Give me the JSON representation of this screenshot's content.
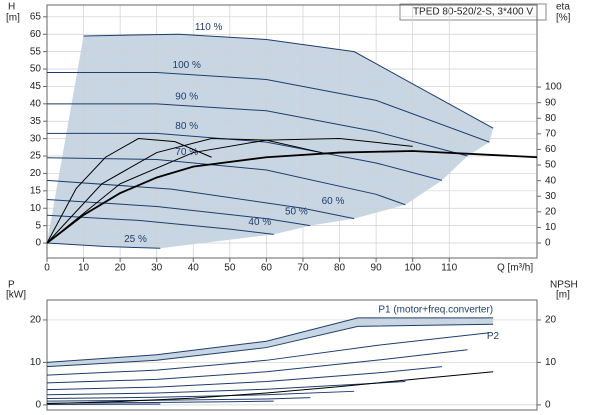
{
  "chart_data": [
    {
      "type": "line",
      "title": "TPED 80-520/2-S, 3*400 V",
      "x_label": "Q [m³/h]",
      "y_label": "H",
      "y_unit": "[m]",
      "y2_label": "eta",
      "y2_unit": "[%]",
      "xlim": [
        0,
        134
      ],
      "ylim": [
        -4.3,
        68.4
      ],
      "y2lim": [
        -9.6,
        152.6
      ],
      "xticks": [
        0,
        10,
        20,
        30,
        40,
        50,
        60,
        70,
        80,
        90,
        100,
        110
      ],
      "yticks": [
        0,
        5,
        10,
        15,
        20,
        25,
        30,
        35,
        40,
        45,
        50,
        55,
        60,
        65
      ],
      "y2ticks": [
        0,
        10,
        20,
        30,
        40,
        50,
        60,
        70,
        80,
        90,
        100
      ],
      "grid": true,
      "shade": "#c8d6e4",
      "series": [
        {
          "name": "110 %",
          "color": "#1f3d6b",
          "x": [
            10,
            36,
            60,
            84,
            122
          ],
          "values": [
            59.5,
            60,
            58.5,
            55,
            33
          ]
        },
        {
          "name": "100 %",
          "color": "#1f3d6b",
          "x": [
            0,
            30,
            60,
            90,
            121
          ],
          "values": [
            49,
            49,
            47,
            41,
            29
          ]
        },
        {
          "name": "90 %",
          "color": "#1f3d6b",
          "x": [
            0,
            30,
            60,
            90,
            115
          ],
          "values": [
            40,
            40,
            38,
            32,
            25
          ]
        },
        {
          "name": "80 %",
          "color": "#1f3d6b",
          "x": [
            0,
            30,
            60,
            90,
            108
          ],
          "values": [
            31.5,
            31.5,
            29,
            23,
            18
          ]
        },
        {
          "name": "70 %",
          "color": "#1f3d6b",
          "x": [
            0,
            30,
            60,
            90,
            98
          ],
          "values": [
            24.5,
            24,
            21,
            14,
            11
          ]
        },
        {
          "name": "60 %",
          "color": "#1f3d6b",
          "x": [
            0,
            34,
            70,
            84
          ],
          "values": [
            18,
            15.5,
            10,
            7
          ]
        },
        {
          "name": "50 %",
          "color": "#1f3d6b",
          "x": [
            0,
            30,
            60,
            72
          ],
          "values": [
            12.5,
            10.5,
            7,
            5
          ]
        },
        {
          "name": "40 %",
          "color": "#1f3d6b",
          "x": [
            0,
            25,
            50,
            62
          ],
          "values": [
            8,
            6.5,
            4,
            2.5
          ]
        },
        {
          "name": "25 %",
          "color": "#1f3d6b",
          "x": [
            0,
            16,
            31
          ],
          "values": [
            0,
            -1,
            -1.5
          ]
        },
        {
          "color": "#000000",
          "axis": "y2",
          "x": [
            0,
            10,
            20,
            30,
            40,
            60,
            80,
            100,
            134
          ],
          "values": [
            0,
            18,
            32,
            42,
            49,
            55,
            58,
            59,
            55
          ]
        },
        {
          "color": "#000000",
          "axis": "y2",
          "x": [
            0,
            8,
            16,
            25,
            35,
            45
          ],
          "values": [
            0,
            35,
            55,
            67,
            65,
            55
          ]
        },
        {
          "color": "#000000",
          "axis": "y2",
          "x": [
            0,
            15,
            30,
            45,
            60,
            75
          ],
          "values": [
            0,
            38,
            58,
            67,
            66,
            58
          ]
        },
        {
          "color": "#000000",
          "axis": "y2",
          "x": [
            0,
            20,
            40,
            60,
            80,
            100
          ],
          "values": [
            0,
            38,
            58,
            66,
            67,
            62
          ]
        }
      ]
    },
    {
      "type": "line",
      "y_label": "P",
      "y_unit": "[kW]",
      "y2_label": "NPSH",
      "y2_unit": "[m]",
      "xlim": [
        0,
        134
      ],
      "ylim": [
        -1.2,
        24.7
      ],
      "y2lim": [
        -1.2,
        24.7
      ],
      "yticks": [
        0,
        10,
        20
      ],
      "y2ticks": [
        0,
        10,
        20
      ],
      "grid": true,
      "shade": "#c8d6e4",
      "series": [
        {
          "name": "P1 (motor+freq.converter)",
          "color": "#1f3d6b",
          "x": [
            0,
            30,
            60,
            85,
            122
          ],
          "values": [
            10,
            11.8,
            15,
            20.5,
            20.5
          ]
        },
        {
          "name": "P2",
          "color": "#1f3d6b",
          "x": [
            0,
            30,
            60,
            85,
            122
          ],
          "values": [
            9,
            10.5,
            13.5,
            18.5,
            19
          ]
        },
        {
          "color": "#1f3d6b",
          "x": [
            0,
            30,
            60,
            90,
            121
          ],
          "values": [
            7,
            8.2,
            10.5,
            14,
            17
          ]
        },
        {
          "color": "#1f3d6b",
          "x": [
            0,
            30,
            60,
            90,
            115
          ],
          "values": [
            5.2,
            6,
            7.8,
            10.5,
            13
          ]
        },
        {
          "color": "#1f3d6b",
          "x": [
            0,
            30,
            60,
            90,
            108
          ],
          "values": [
            3.6,
            4.2,
            5.5,
            7.5,
            9
          ]
        },
        {
          "color": "#1f3d6b",
          "x": [
            0,
            30,
            60,
            98
          ],
          "values": [
            2.4,
            2.8,
            3.7,
            5.5
          ]
        },
        {
          "color": "#1f3d6b",
          "x": [
            0,
            30,
            60,
            84
          ],
          "values": [
            1.5,
            1.8,
            2.4,
            3.2
          ]
        },
        {
          "color": "#1f3d6b",
          "x": [
            0,
            30,
            60,
            72
          ],
          "values": [
            0.9,
            1.1,
            1.4,
            1.7
          ]
        },
        {
          "color": "#1f3d6b",
          "x": [
            0,
            25,
            50,
            62
          ],
          "values": [
            0.4,
            0.55,
            0.75,
            0.9
          ]
        },
        {
          "color": "#1f3d6b",
          "x": [
            0,
            16,
            31
          ],
          "values": [
            0.1,
            0.15,
            0.2
          ]
        },
        {
          "color": "#000000",
          "axis": "y2",
          "x": [
            0,
            20,
            40,
            60,
            80,
            100,
            122
          ],
          "values": [
            0.3,
            0.8,
            1.6,
            2.8,
            4.3,
            6,
            7.8
          ]
        }
      ]
    }
  ]
}
